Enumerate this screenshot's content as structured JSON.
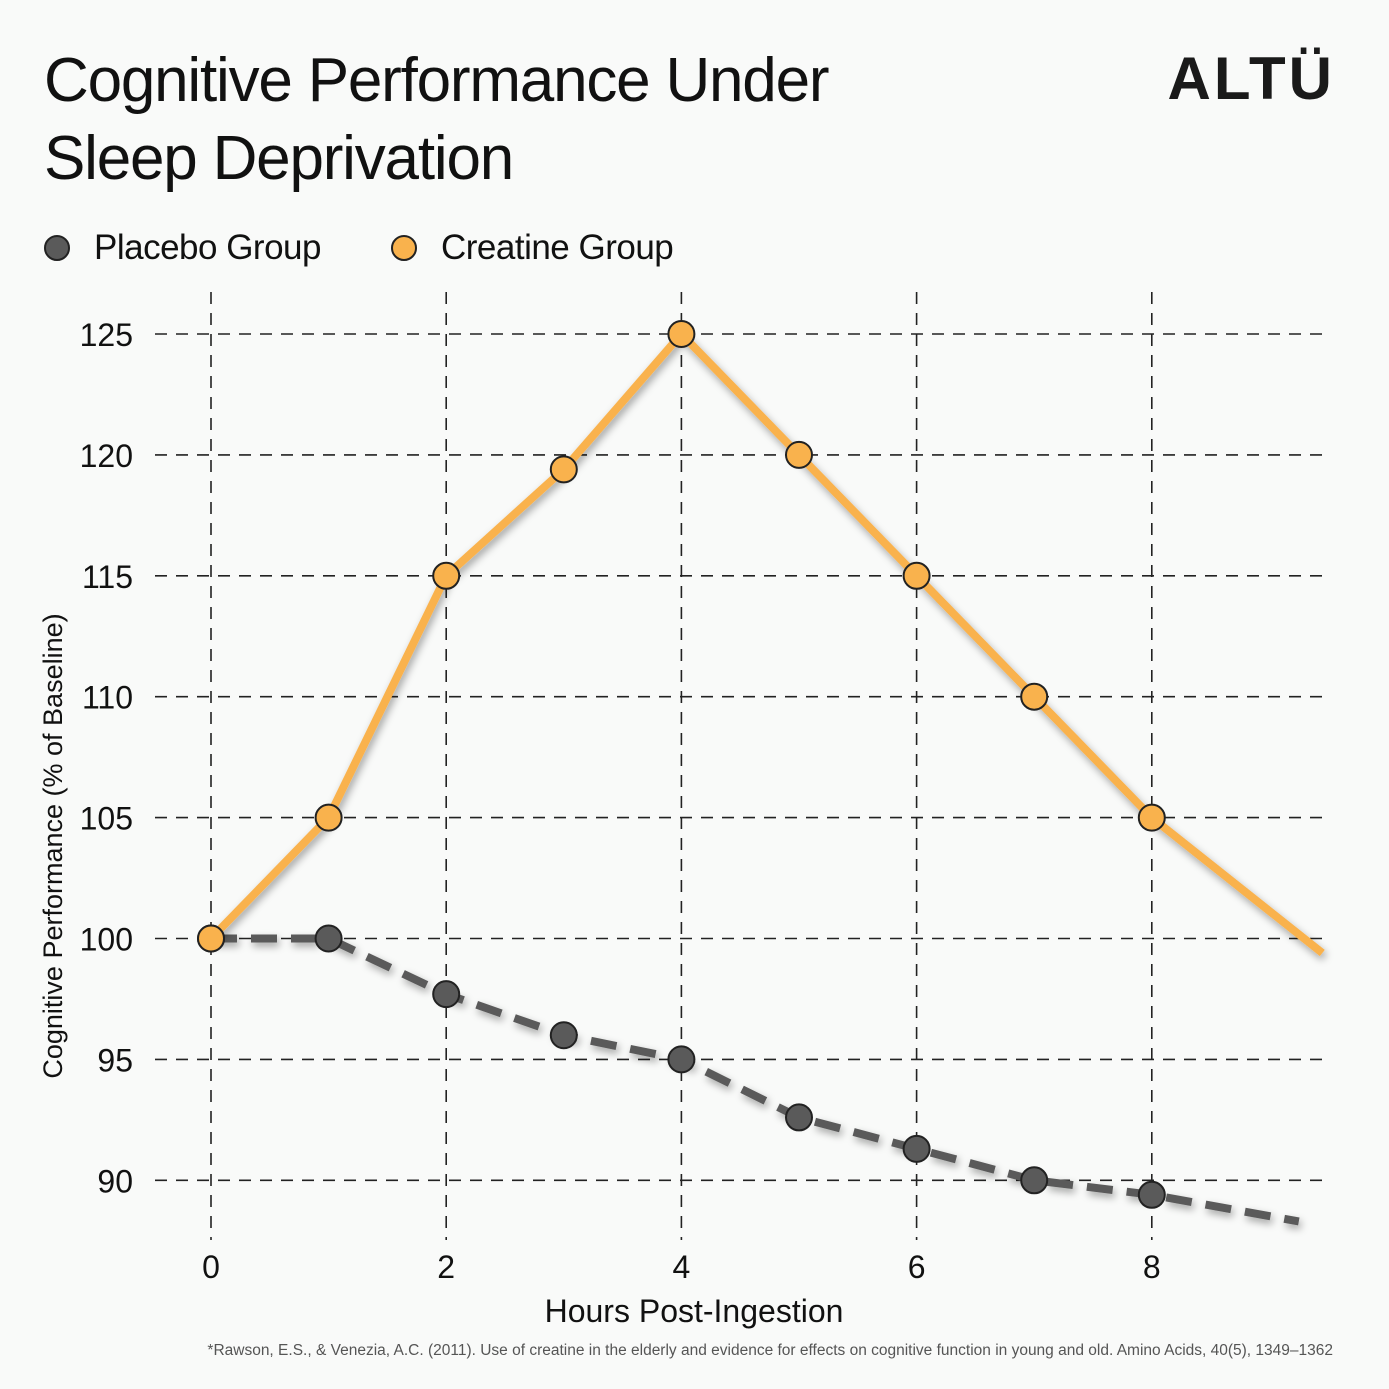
{
  "title_line1": "Cognitive Performance Under",
  "title_line2": "Sleep Deprivation",
  "brand": "ALTÜ",
  "citation": "*Rawson, E.S., & Venezia, A.C. (2011). Use of creatine in the elderly and evidence for effects on cognitive function in young and old. Amino Acids, 40(5), 1349–1362",
  "chart_data": {
    "type": "line",
    "xlabel": "Hours Post-Ingestion",
    "ylabel": "Cognitive Performance (% of Baseline)",
    "xlim": [
      0,
      9.5
    ],
    "ylim": [
      88,
      126
    ],
    "xticks": [
      0,
      2,
      4,
      6,
      8
    ],
    "yticks": [
      90,
      95,
      100,
      105,
      110,
      115,
      120,
      125
    ],
    "grid": true,
    "legend_position": "top-left",
    "series": [
      {
        "name": "Placebo Group",
        "color": "#5a5a5a",
        "line_style": "dashed",
        "x": [
          0,
          1,
          2,
          3,
          4,
          5,
          6,
          7,
          8
        ],
        "values": [
          100,
          100,
          97.7,
          96,
          95,
          92.6,
          91.3,
          90,
          89.4
        ],
        "trend_end": {
          "x": 9.25,
          "y": 88.3
        }
      },
      {
        "name": "Creatine Group",
        "color": "#f9b24d",
        "line_style": "solid",
        "x": [
          0,
          1,
          2,
          3,
          4,
          5,
          6,
          7,
          8
        ],
        "values": [
          100,
          105,
          115,
          119.4,
          125,
          120,
          115,
          110,
          105
        ],
        "trend_end": {
          "x": 9.45,
          "y": 99.4
        }
      }
    ]
  }
}
